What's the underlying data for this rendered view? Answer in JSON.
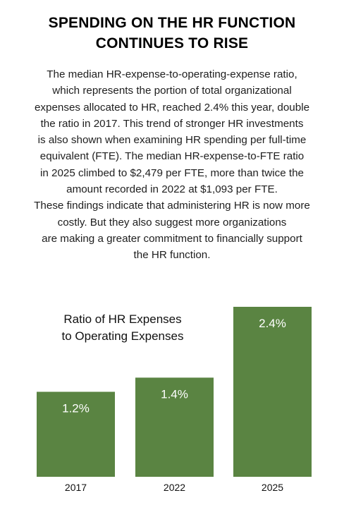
{
  "headline": {
    "lines": [
      "SPENDING ON THE HR FUNCTION",
      "CONTINUES TO RISE"
    ]
  },
  "body": {
    "lines": [
      "The median HR-expense-to-operating-expense ratio,",
      "which represents the portion of total organizational",
      "expenses allocated to HR, reached 2.4% this year, double",
      "the ratio in 2017. This trend of stronger HR investments",
      "is also shown when examining HR spending per full-time",
      "equivalent (FTE). The median HR-expense-to-FTE ratio",
      "in 2025 climbed to $2,479 per FTE, more than twice the",
      "amount recorded in 2022 at $1,093 per FTE.",
      "These findings indicate that administering HR is now more",
      "costly. But they also suggest more organizations",
      "are making a greater commitment to financially support",
      "the HR function."
    ]
  },
  "chart_data": {
    "type": "bar",
    "title": "Ratio of HR Expenses to Operating Expenses",
    "title_lines": [
      "Ratio of HR Expenses",
      "to Operating Expenses"
    ],
    "categories": [
      "2017",
      "2022",
      "2025"
    ],
    "values": [
      1.2,
      1.4,
      2.4
    ],
    "value_labels": [
      "1.2%",
      "1.4%",
      "2.4%"
    ],
    "unit": "%",
    "ylim": [
      0,
      2.4
    ],
    "bar_color": "#5a8442",
    "label_color": "#ffffff",
    "grid": false,
    "legend": "none"
  }
}
